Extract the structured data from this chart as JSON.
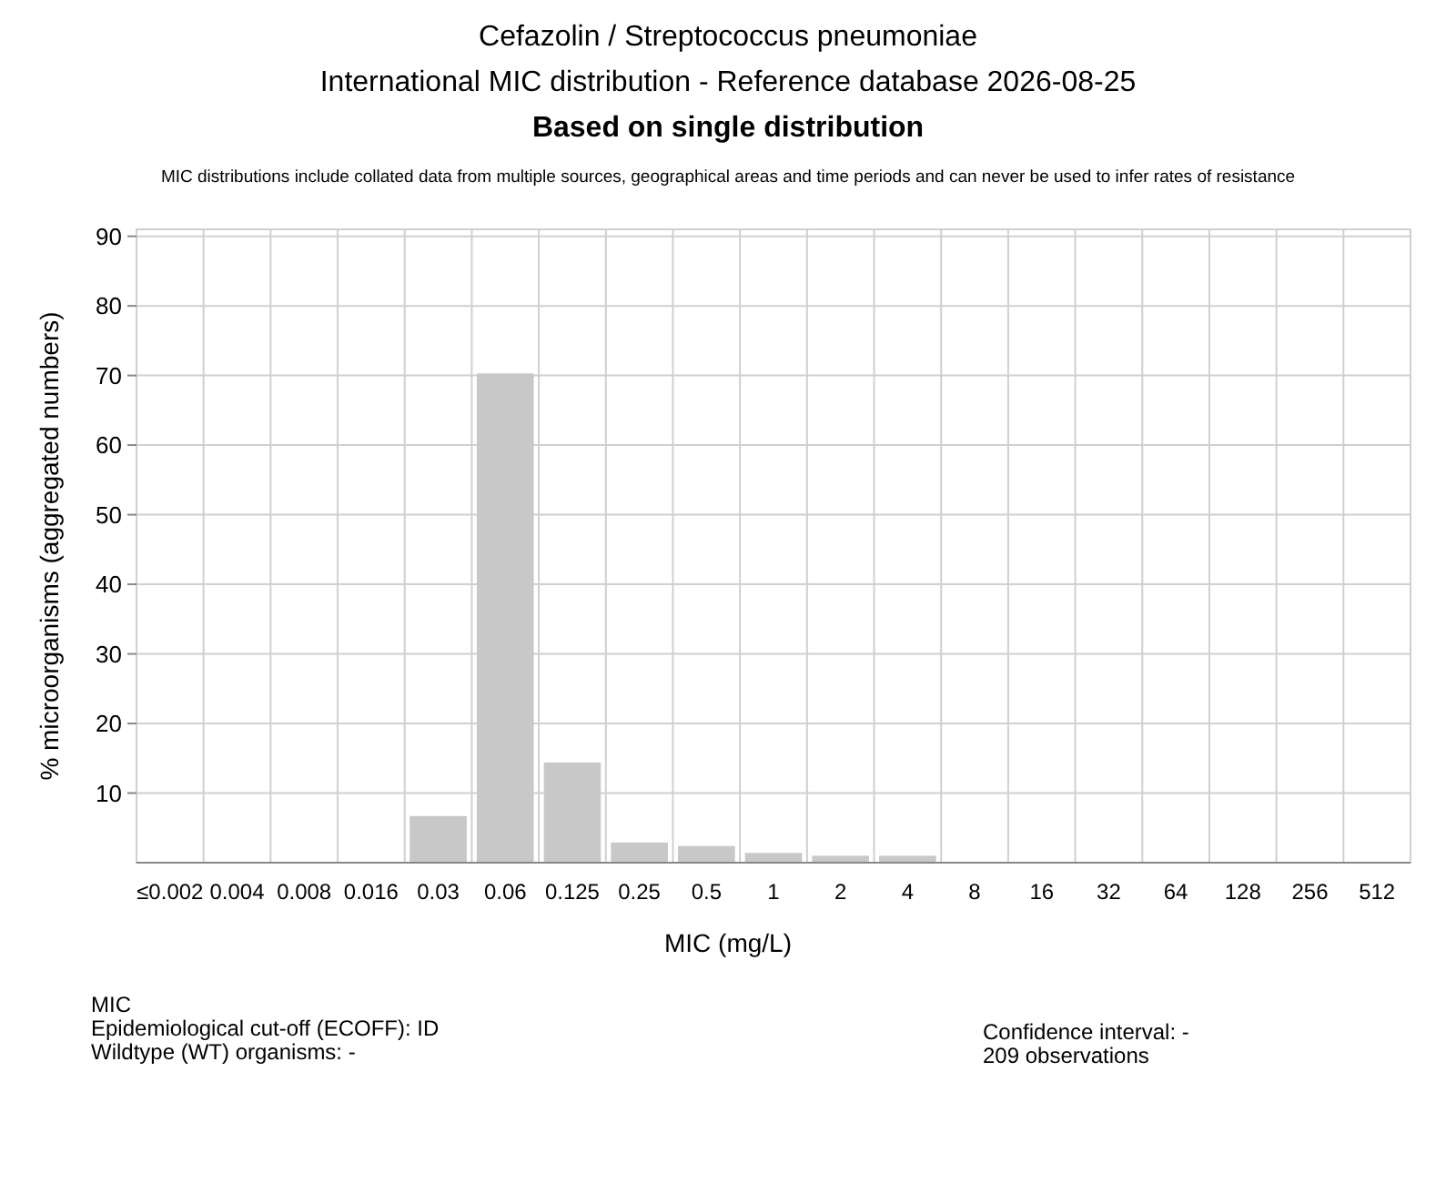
{
  "chart_data": {
    "type": "bar",
    "title": "Cefazolin / Streptococcus pneumoniae",
    "subtitle": "International MIC distribution - Reference database 2026-08-25",
    "annotations": [
      "Based on single distribution",
      "MIC distributions include collated data from multiple sources, geographical areas and time periods and can never be used to infer rates of resistance",
      "MIC",
      "Epidemiological cut-off (ECOFF): ID",
      "Wildtype (WT) organisms:  -",
      "Confidence interval: -",
      "209 observations"
    ],
    "xlabel": "MIC (mg/L)",
    "ylabel": "% microorganisms (aggregated numbers)",
    "categories": [
      "≤0.002",
      "0.004",
      "0.008",
      "0.016",
      "0.03",
      "0.06",
      "0.125",
      "0.25",
      "0.5",
      "1",
      "2",
      "4",
      "8",
      "16",
      "32",
      "64",
      "128",
      "256",
      "512"
    ],
    "values": [
      0,
      0,
      0,
      0,
      6.7,
      70.3,
      14.4,
      2.9,
      2.4,
      1.4,
      1.0,
      1.0,
      0,
      0,
      0,
      0,
      0,
      0,
      0
    ],
    "color": "#c8c8c8",
    "ylim": [
      0,
      91
    ],
    "yticks": [
      10,
      20,
      30,
      40,
      50,
      60,
      70,
      80,
      90
    ],
    "grid": true
  }
}
